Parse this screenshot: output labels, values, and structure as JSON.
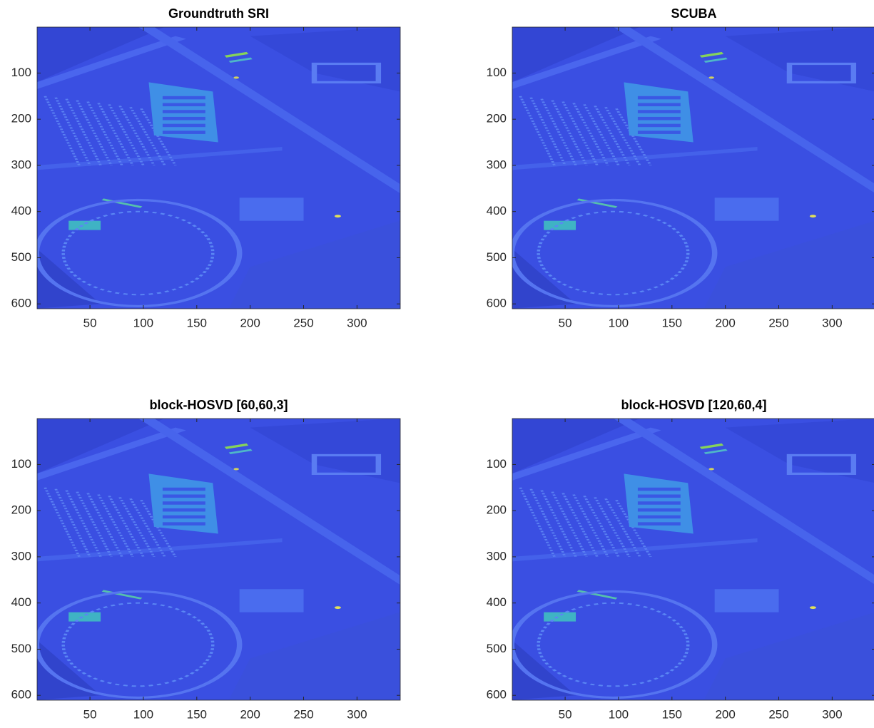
{
  "chart_data": [
    {
      "type": "image",
      "title": "Groundtruth SRI",
      "xlim": [
        0.5,
        340.5
      ],
      "ylim": [
        610.5,
        0.5
      ],
      "xticks": [
        50,
        100,
        150,
        200,
        250,
        300
      ],
      "yticks": [
        100,
        200,
        300,
        400,
        500,
        600
      ]
    },
    {
      "type": "image",
      "title": "SCUBA",
      "xlim": [
        0.5,
        340.5
      ],
      "ylim": [
        610.5,
        0.5
      ],
      "xticks": [
        50,
        100,
        150,
        200,
        250,
        300
      ],
      "yticks": [
        100,
        200,
        300,
        400,
        500,
        600
      ]
    },
    {
      "type": "image",
      "title": "block-HOSVD [60,60,3]",
      "xlim": [
        0.5,
        340.5
      ],
      "ylim": [
        610.5,
        0.5
      ],
      "xticks": [
        50,
        100,
        150,
        200,
        250,
        300
      ],
      "yticks": [
        100,
        200,
        300,
        400,
        500,
        600
      ]
    },
    {
      "type": "image",
      "title": "block-HOSVD [120,60,4]",
      "xlim": [
        0.5,
        340.5
      ],
      "ylim": [
        610.5,
        0.5
      ],
      "xticks": [
        50,
        100,
        150,
        200,
        250,
        300
      ],
      "yticks": [
        100,
        200,
        300,
        400,
        500,
        600
      ]
    }
  ]
}
